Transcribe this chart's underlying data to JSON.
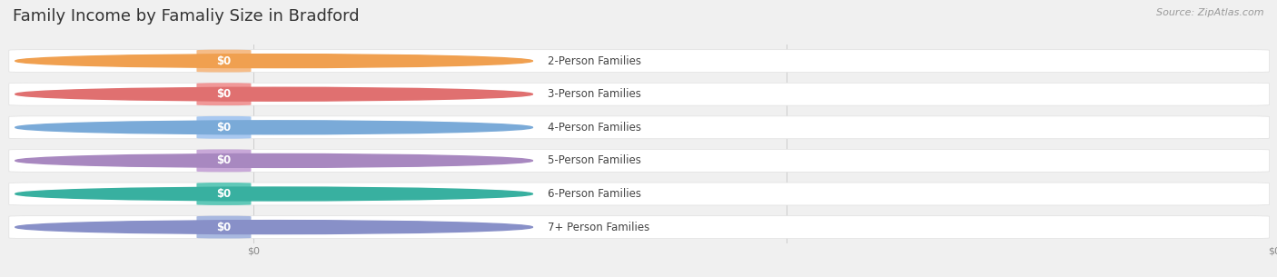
{
  "title": "Family Income by Famaliy Size in Bradford",
  "source": "Source: ZipAtlas.com",
  "categories": [
    "2-Person Families",
    "3-Person Families",
    "4-Person Families",
    "5-Person Families",
    "6-Person Families",
    "7+ Person Families"
  ],
  "values": [
    0,
    0,
    0,
    0,
    0,
    0
  ],
  "pill_colors": [
    "#F5BC88",
    "#F09898",
    "#A8C8F0",
    "#C8A8D8",
    "#60C8B8",
    "#A8B8E0"
  ],
  "dot_colors": [
    "#F0A050",
    "#E07070",
    "#7AAAD8",
    "#A888C0",
    "#38B0A0",
    "#8890C8"
  ],
  "background_color": "#f0f0f0",
  "bar_bg_color": "#ffffff",
  "bar_bg_border": "#e0e0e0",
  "label_color": "#444444",
  "value_color": "#ffffff",
  "title_color": "#333333",
  "source_color": "#999999",
  "title_fontsize": 13,
  "label_fontsize": 8.5,
  "value_fontsize": 8.5,
  "source_fontsize": 8,
  "tick_fontsize": 8
}
